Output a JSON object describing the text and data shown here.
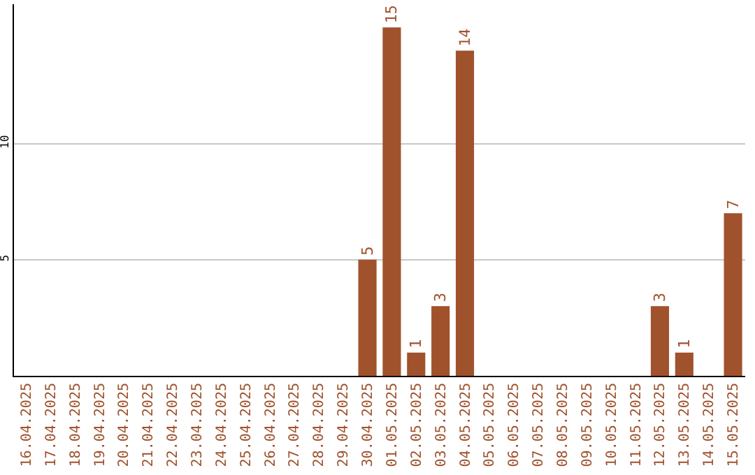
{
  "chart_data": {
    "type": "bar",
    "categories": [
      "16.04.2025",
      "17.04.2025",
      "18.04.2025",
      "19.04.2025",
      "20.04.2025",
      "21.04.2025",
      "22.04.2025",
      "23.04.2025",
      "24.04.2025",
      "25.04.2025",
      "26.04.2025",
      "27.04.2025",
      "28.04.2025",
      "29.04.2025",
      "30.04.2025",
      "01.05.2025",
      "02.05.2025",
      "03.05.2025",
      "04.05.2025",
      "05.05.2025",
      "06.05.2025",
      "07.05.2025",
      "08.05.2025",
      "09.05.2025",
      "10.05.2025",
      "11.05.2025",
      "12.05.2025",
      "13.05.2025",
      "14.05.2025",
      "15.05.2025"
    ],
    "values": [
      0,
      0,
      0,
      0,
      0,
      0,
      0,
      0,
      0,
      0,
      0,
      0,
      0,
      0,
      5,
      15,
      1,
      3,
      14,
      0,
      0,
      0,
      0,
      0,
      0,
      0,
      3,
      1,
      0,
      7
    ],
    "value_labels": [
      null,
      null,
      null,
      null,
      null,
      null,
      null,
      null,
      null,
      null,
      null,
      null,
      null,
      null,
      "5",
      "15",
      "1",
      "3",
      "14",
      null,
      null,
      null,
      null,
      null,
      null,
      null,
      "3",
      "1",
      null,
      "7"
    ],
    "color": "#a0522d",
    "ylim": [
      0,
      16
    ],
    "yticks": [
      5,
      10
    ],
    "grid": "y",
    "legend": false
  }
}
